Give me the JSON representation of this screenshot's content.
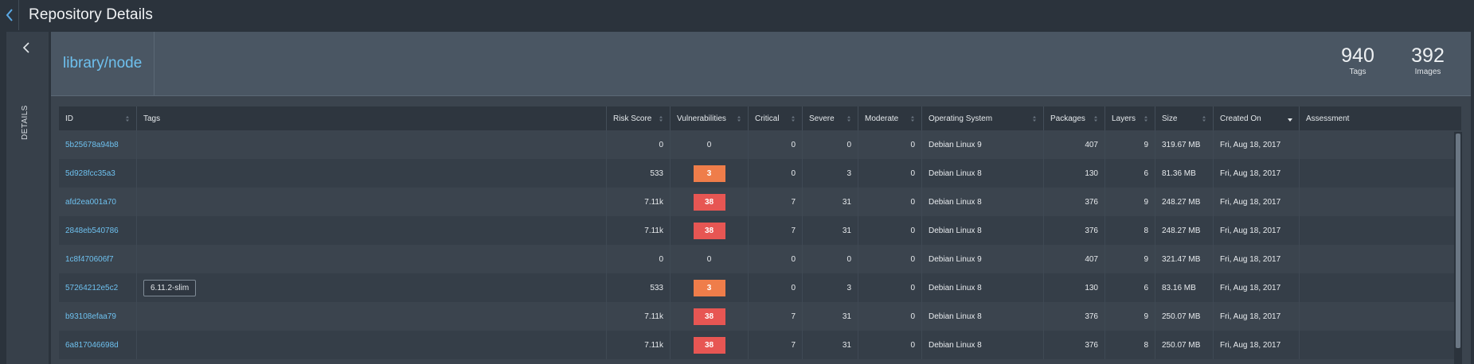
{
  "header": {
    "title": "Repository Details"
  },
  "rail": {
    "label": "DETAILS"
  },
  "repo": {
    "name": "library/node",
    "stats": [
      {
        "value": "940",
        "label": "Tags"
      },
      {
        "value": "392",
        "label": "Images"
      }
    ]
  },
  "table": {
    "columns": [
      {
        "key": "id",
        "label": "ID",
        "sortable": true
      },
      {
        "key": "tags",
        "label": "Tags",
        "sortable": false
      },
      {
        "key": "risk",
        "label": "Risk Score",
        "sortable": true
      },
      {
        "key": "vuln",
        "label": "Vulnerabilities",
        "sortable": true
      },
      {
        "key": "critical",
        "label": "Critical",
        "sortable": true
      },
      {
        "key": "severe",
        "label": "Severe",
        "sortable": true
      },
      {
        "key": "moderate",
        "label": "Moderate",
        "sortable": true
      },
      {
        "key": "os",
        "label": "Operating System",
        "sortable": true
      },
      {
        "key": "packages",
        "label": "Packages",
        "sortable": true
      },
      {
        "key": "layers",
        "label": "Layers",
        "sortable": true
      },
      {
        "key": "size",
        "label": "Size",
        "sortable": true
      },
      {
        "key": "created",
        "label": "Created On",
        "sortable": true,
        "sorted": "desc"
      },
      {
        "key": "assessment",
        "label": "Assessment",
        "sortable": false
      }
    ],
    "rows": [
      {
        "id": "5b25678a94b8",
        "tag": "",
        "risk": "0",
        "vuln": "0",
        "vuln_level": "none",
        "critical": "0",
        "severe": "0",
        "moderate": "0",
        "os": "Debian Linux 9",
        "packages": "407",
        "layers": "9",
        "size": "319.67 MB",
        "created": "Fri, Aug 18, 2017",
        "assessment": ""
      },
      {
        "id": "5d928fcc35a3",
        "tag": "",
        "risk": "533",
        "vuln": "3",
        "vuln_level": "orange",
        "critical": "0",
        "severe": "3",
        "moderate": "0",
        "os": "Debian Linux 8",
        "packages": "130",
        "layers": "6",
        "size": "81.36 MB",
        "created": "Fri, Aug 18, 2017",
        "assessment": ""
      },
      {
        "id": "afd2ea001a70",
        "tag": "",
        "risk": "7.11k",
        "vuln": "38",
        "vuln_level": "red",
        "critical": "7",
        "severe": "31",
        "moderate": "0",
        "os": "Debian Linux 8",
        "packages": "376",
        "layers": "9",
        "size": "248.27 MB",
        "created": "Fri, Aug 18, 2017",
        "assessment": ""
      },
      {
        "id": "2848eb540786",
        "tag": "",
        "risk": "7.11k",
        "vuln": "38",
        "vuln_level": "red",
        "critical": "7",
        "severe": "31",
        "moderate": "0",
        "os": "Debian Linux 8",
        "packages": "376",
        "layers": "8",
        "size": "248.27 MB",
        "created": "Fri, Aug 18, 2017",
        "assessment": ""
      },
      {
        "id": "1c8f470606f7",
        "tag": "",
        "risk": "0",
        "vuln": "0",
        "vuln_level": "none",
        "critical": "0",
        "severe": "0",
        "moderate": "0",
        "os": "Debian Linux 9",
        "packages": "407",
        "layers": "9",
        "size": "321.47 MB",
        "created": "Fri, Aug 18, 2017",
        "assessment": ""
      },
      {
        "id": "57264212e5c2",
        "tag": "6.11.2-slim",
        "risk": "533",
        "vuln": "3",
        "vuln_level": "orange",
        "critical": "0",
        "severe": "3",
        "moderate": "0",
        "os": "Debian Linux 8",
        "packages": "130",
        "layers": "6",
        "size": "83.16 MB",
        "created": "Fri, Aug 18, 2017",
        "assessment": ""
      },
      {
        "id": "b93108efaa79",
        "tag": "",
        "risk": "7.11k",
        "vuln": "38",
        "vuln_level": "red",
        "critical": "7",
        "severe": "31",
        "moderate": "0",
        "os": "Debian Linux 8",
        "packages": "376",
        "layers": "9",
        "size": "250.07 MB",
        "created": "Fri, Aug 18, 2017",
        "assessment": ""
      },
      {
        "id": "6a817046698d",
        "tag": "",
        "risk": "7.11k",
        "vuln": "38",
        "vuln_level": "red",
        "critical": "7",
        "severe": "31",
        "moderate": "0",
        "os": "Debian Linux 8",
        "packages": "376",
        "layers": "8",
        "size": "250.07 MB",
        "created": "Fri, Aug 18, 2017",
        "assessment": ""
      }
    ]
  },
  "colors": {
    "accent": "#6ec0ee",
    "vuln_orange": "#ef7d4a",
    "vuln_red": "#e75653"
  }
}
